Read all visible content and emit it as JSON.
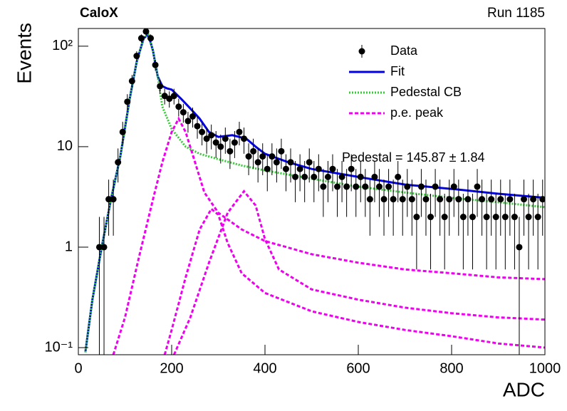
{
  "chart_data": {
    "type": "scatter",
    "title": "CaloX",
    "subtitle": "Run 1185",
    "x_label": "ADC",
    "y_label": "Events",
    "annotation": "Pedestal = 145.87 ± 1.84",
    "log_y": true,
    "xlim": [
      0,
      1000
    ],
    "ylim": [
      0.085,
      150
    ],
    "xticks": [
      0,
      200,
      400,
      600,
      800,
      1000
    ],
    "yticks": [
      {
        "value": 0.1,
        "label": "10⁻¹"
      },
      1,
      10,
      {
        "value": 100,
        "label": "10²"
      }
    ],
    "legend": "top-right",
    "series": [
      {
        "name": "Data",
        "style": "points",
        "color": "#000000",
        "x": [
          45,
          55,
          65,
          75,
          85,
          95,
          105,
          115,
          125,
          135,
          145,
          155,
          165,
          175,
          185,
          195,
          205,
          215,
          225,
          235,
          245,
          255,
          265,
          275,
          285,
          295,
          305,
          315,
          325,
          335,
          345,
          355,
          365,
          375,
          385,
          395,
          405,
          415,
          425,
          435,
          445,
          455,
          465,
          475,
          485,
          495,
          505,
          515,
          525,
          535,
          545,
          555,
          565,
          575,
          585,
          595,
          605,
          615,
          625,
          635,
          645,
          655,
          665,
          675,
          685,
          695,
          705,
          715,
          725,
          735,
          745,
          755,
          765,
          775,
          785,
          795,
          805,
          815,
          825,
          835,
          845,
          855,
          865,
          875,
          885,
          895,
          905,
          915,
          925,
          935,
          945,
          955,
          965,
          975,
          985,
          995
        ],
        "values": [
          1,
          1,
          3,
          3,
          7,
          14,
          28,
          45,
          80,
          120,
          140,
          120,
          65,
          40,
          32,
          30,
          32,
          25,
          22,
          18,
          20,
          16,
          14,
          12,
          13,
          11,
          10,
          12,
          9,
          11,
          14,
          12,
          8,
          9,
          7,
          8,
          6,
          8,
          7,
          9,
          6,
          7,
          5,
          6,
          5,
          7,
          5,
          6,
          4,
          5,
          6,
          4,
          5,
          4,
          6,
          4,
          5,
          4,
          3,
          5,
          4,
          3,
          4,
          3,
          5,
          3,
          4,
          3,
          2,
          4,
          3,
          2,
          4,
          3,
          2,
          3,
          4,
          3,
          2,
          3,
          2,
          4,
          3,
          2,
          3,
          2,
          3,
          2,
          3,
          2,
          1,
          3,
          2,
          3,
          2,
          3
        ],
        "errors": [
          1,
          1,
          1.7,
          1.7,
          2.6,
          3.7,
          5.3,
          6.7,
          8.9,
          11,
          11.8,
          11,
          8.1,
          6.3,
          5.7,
          5.5,
          5.7,
          5,
          4.7,
          4.2,
          4.5,
          4,
          3.7,
          3.5,
          3.6,
          3.3,
          3.2,
          3.5,
          3,
          3.3,
          3.7,
          3.5,
          2.8,
          3,
          2.6,
          2.8,
          2.4,
          2.8,
          2.6,
          3,
          2.4,
          2.6,
          2.2,
          2.4,
          2.2,
          2.6,
          2.2,
          2.4,
          2,
          2.2,
          2.4,
          2,
          2.2,
          2,
          2.4,
          2,
          2.2,
          2,
          1.7,
          2.2,
          2,
          1.7,
          2,
          1.7,
          2.2,
          1.7,
          2,
          1.7,
          1.4,
          2,
          1.7,
          1.4,
          2,
          1.7,
          1.4,
          1.7,
          2,
          1.7,
          1.4,
          1.7,
          1.4,
          2,
          1.7,
          1.4,
          1.7,
          1.4,
          1.7,
          1.4,
          1.7,
          1.4,
          1,
          1.7,
          1.4,
          1.7,
          1.4,
          1.7
        ]
      },
      {
        "name": "Fit",
        "style": "solid",
        "color": "#0000e0",
        "curves": [
          {
            "x": [
              15,
              30,
              50,
              70,
              90,
              110,
              125,
              140,
              150,
              160,
              170,
              180,
              190,
              200,
              220,
              240,
              260,
              280,
              300,
              330,
              360,
              380,
              400,
              450,
              500,
              600,
              700,
              800,
              900,
              1000
            ],
            "values": [
              0.09,
              0.3,
              1,
              3,
              8,
              30,
              70,
              120,
              130,
              90,
              50,
              40,
              38,
              37,
              30,
              24,
              19,
              14,
              12.5,
              13,
              12,
              10,
              8.5,
              7,
              6,
              5,
              4.2,
              3.8,
              3.4,
              3.1
            ]
          }
        ]
      },
      {
        "name": "Pedestal CB",
        "style": "dotted",
        "color": "#33cc33",
        "curves": [
          {
            "x": [
              15,
              30,
              50,
              70,
              90,
              110,
              125,
              140,
              150,
              160,
              170,
              180,
              200,
              230,
              260,
              300,
              350,
              400,
              500,
              600,
              700,
              800,
              900,
              1000
            ],
            "values": [
              0.09,
              0.3,
              1,
              3,
              8,
              30,
              70,
              120,
              130,
              90,
              50,
              25,
              15,
              10,
              8.5,
              7.5,
              6.5,
              5.8,
              4.8,
              4,
              3.5,
              3.1,
              2.8,
              2.5
            ]
          }
        ]
      },
      {
        "name": "p.e. peak",
        "style": "dashed",
        "color": "#ee00ee",
        "curves": [
          {
            "x": [
              75,
              100,
              130,
              160,
              180,
              200,
              215,
              230,
              250,
              270,
              300,
              350,
              400,
              500,
              600,
              700,
              800,
              900,
              1000
            ],
            "values": [
              0.085,
              0.2,
              0.8,
              3,
              7,
              14,
              19,
              14,
              7,
              3.5,
              2.2,
              1.5,
              1.15,
              0.85,
              0.7,
              0.6,
              0.55,
              0.5,
              0.48
            ]
          },
          {
            "x": [
              185,
              200,
              230,
              260,
              285,
              300,
              320,
              350,
              400,
              500,
              600,
              700,
              800,
              900,
              1000
            ],
            "values": [
              0.085,
              0.15,
              0.5,
              1.5,
              2.4,
              2.1,
              1.1,
              0.55,
              0.35,
              0.23,
              0.18,
              0.15,
              0.13,
              0.11,
              0.1
            ]
          },
          {
            "x": [
              205,
              240,
              280,
              320,
              355,
              380,
              400,
              430,
              500,
              600,
              700,
              800,
              900,
              1000
            ],
            "values": [
              0.085,
              0.2,
              0.7,
              2.2,
              3.6,
              2.6,
              1.2,
              0.6,
              0.38,
              0.3,
              0.25,
              0.22,
              0.2,
              0.19
            ]
          }
        ]
      }
    ]
  }
}
